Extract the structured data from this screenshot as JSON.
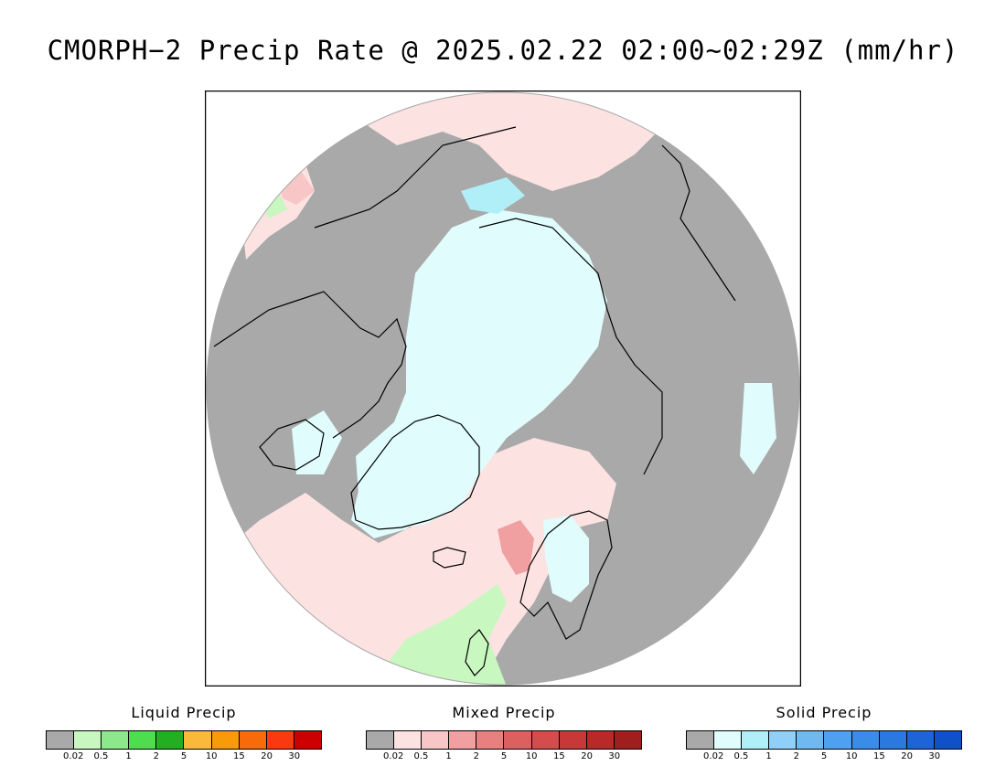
{
  "title": "CMORPH−2 Precip Rate @ 2025.02.22 02:00~02:29Z (mm/hr)",
  "colors": {
    "no_data": "#a9a9a9",
    "background": "#ffffff",
    "coastline": "#000000"
  },
  "legends": [
    {
      "title": "Liquid Precip",
      "colors": [
        "#a9a9a9",
        "#c8f7c0",
        "#8ce88a",
        "#4fdc4f",
        "#22b022",
        "#fbb93a",
        "#f99a09",
        "#f96a09",
        "#f93a10",
        "#cc0000"
      ],
      "ticks": [
        "0.02",
        "0.5",
        "1",
        "2",
        "5",
        "10",
        "15",
        "20",
        "30"
      ]
    },
    {
      "title": "Mixed Precip",
      "colors": [
        "#a9a9a9",
        "#fde2e2",
        "#f8c6c6",
        "#f0a0a0",
        "#e88080",
        "#dd6060",
        "#d44c4c",
        "#c83838",
        "#b82a2a",
        "#a01e1e"
      ],
      "ticks": [
        "0.02",
        "0.5",
        "1",
        "2",
        "5",
        "10",
        "15",
        "20",
        "30"
      ]
    },
    {
      "title": "Solid Precip",
      "colors": [
        "#a9a9a9",
        "#e0fcfc",
        "#b0eef8",
        "#90d0f8",
        "#70b8f0",
        "#50a0f0",
        "#3a8ce8",
        "#2a78e0",
        "#1e64d8",
        "#1050c8"
      ],
      "ticks": [
        "0.02",
        "0.5",
        "1",
        "2",
        "5",
        "10",
        "15",
        "20",
        "30"
      ]
    }
  ]
}
